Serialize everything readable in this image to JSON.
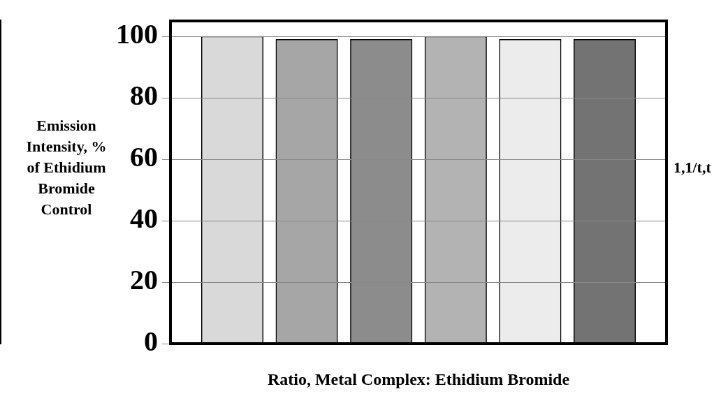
{
  "chart_data": {
    "type": "bar",
    "ylabel": "Emission Intensity, % of Ethidium Bromide Control",
    "xlabel": "Ratio, Metal Complex: Ethidium Bromide",
    "categories": [
      null,
      null,
      null,
      null,
      null,
      null
    ],
    "values": [
      100,
      99,
      99,
      100,
      99,
      99
    ],
    "colors": [
      "#d9d9d9",
      "#a6a6a6",
      "#8c8c8c",
      "#b3b3b3",
      "#ececec",
      "#737373"
    ],
    "ylim": [
      0,
      105
    ],
    "yticks": [
      0,
      20,
      40,
      60,
      80,
      100
    ],
    "grid": "y",
    "legend": false,
    "annotations": [
      "1,1/t,t"
    ]
  }
}
